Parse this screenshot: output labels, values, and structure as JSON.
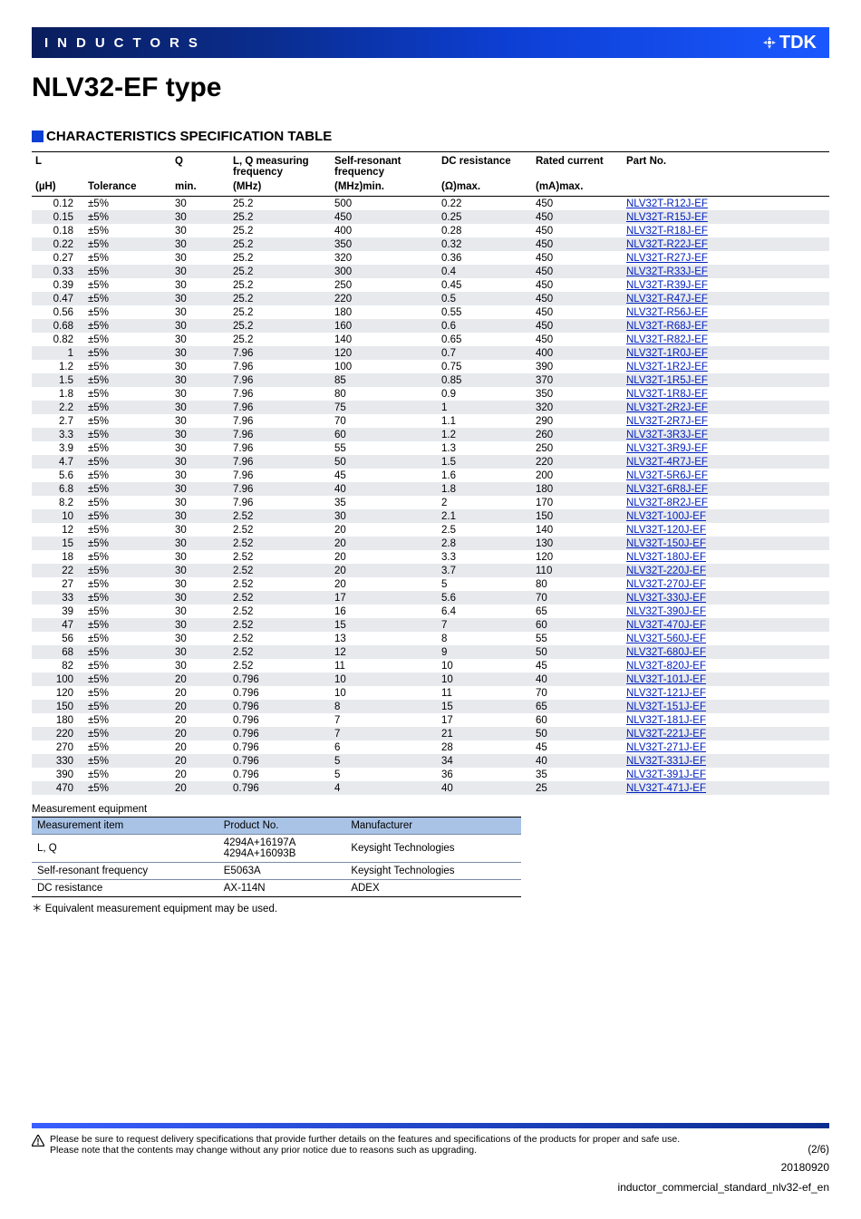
{
  "banner": {
    "title": "INDUCTORS",
    "brand": "TDK"
  },
  "page_title": "NLV32-EF type",
  "section_title": "CHARACTERISTICS SPECIFICATION TABLE",
  "spec": {
    "headers1": [
      "L",
      "",
      "Q",
      "L, Q measuring frequency",
      "Self-resonant frequency",
      "DC resistance",
      "Rated current",
      "Part No."
    ],
    "headers2": [
      "(µH)",
      "Tolerance",
      "min.",
      "(MHz)",
      "(MHz)min.",
      "(Ω)max.",
      "(mA)max.",
      ""
    ],
    "rows": [
      [
        "0.12",
        "±5%",
        "30",
        "25.2",
        "500",
        "0.22",
        "450",
        "NLV32T-R12J-EF"
      ],
      [
        "0.15",
        "±5%",
        "30",
        "25.2",
        "450",
        "0.25",
        "450",
        "NLV32T-R15J-EF"
      ],
      [
        "0.18",
        "±5%",
        "30",
        "25.2",
        "400",
        "0.28",
        "450",
        "NLV32T-R18J-EF"
      ],
      [
        "0.22",
        "±5%",
        "30",
        "25.2",
        "350",
        "0.32",
        "450",
        "NLV32T-R22J-EF"
      ],
      [
        "0.27",
        "±5%",
        "30",
        "25.2",
        "320",
        "0.36",
        "450",
        "NLV32T-R27J-EF"
      ],
      [
        "0.33",
        "±5%",
        "30",
        "25.2",
        "300",
        "0.4",
        "450",
        "NLV32T-R33J-EF"
      ],
      [
        "0.39",
        "±5%",
        "30",
        "25.2",
        "250",
        "0.45",
        "450",
        "NLV32T-R39J-EF"
      ],
      [
        "0.47",
        "±5%",
        "30",
        "25.2",
        "220",
        "0.5",
        "450",
        "NLV32T-R47J-EF"
      ],
      [
        "0.56",
        "±5%",
        "30",
        "25.2",
        "180",
        "0.55",
        "450",
        "NLV32T-R56J-EF"
      ],
      [
        "0.68",
        "±5%",
        "30",
        "25.2",
        "160",
        "0.6",
        "450",
        "NLV32T-R68J-EF"
      ],
      [
        "0.82",
        "±5%",
        "30",
        "25.2",
        "140",
        "0.65",
        "450",
        "NLV32T-R82J-EF"
      ],
      [
        "1",
        "±5%",
        "30",
        "7.96",
        "120",
        "0.7",
        "400",
        "NLV32T-1R0J-EF"
      ],
      [
        "1.2",
        "±5%",
        "30",
        "7.96",
        "100",
        "0.75",
        "390",
        "NLV32T-1R2J-EF"
      ],
      [
        "1.5",
        "±5%",
        "30",
        "7.96",
        "85",
        "0.85",
        "370",
        "NLV32T-1R5J-EF"
      ],
      [
        "1.8",
        "±5%",
        "30",
        "7.96",
        "80",
        "0.9",
        "350",
        "NLV32T-1R8J-EF"
      ],
      [
        "2.2",
        "±5%",
        "30",
        "7.96",
        "75",
        "1",
        "320",
        "NLV32T-2R2J-EF"
      ],
      [
        "2.7",
        "±5%",
        "30",
        "7.96",
        "70",
        "1.1",
        "290",
        "NLV32T-2R7J-EF"
      ],
      [
        "3.3",
        "±5%",
        "30",
        "7.96",
        "60",
        "1.2",
        "260",
        "NLV32T-3R3J-EF"
      ],
      [
        "3.9",
        "±5%",
        "30",
        "7.96",
        "55",
        "1.3",
        "250",
        "NLV32T-3R9J-EF"
      ],
      [
        "4.7",
        "±5%",
        "30",
        "7.96",
        "50",
        "1.5",
        "220",
        "NLV32T-4R7J-EF"
      ],
      [
        "5.6",
        "±5%",
        "30",
        "7.96",
        "45",
        "1.6",
        "200",
        "NLV32T-5R6J-EF"
      ],
      [
        "6.8",
        "±5%",
        "30",
        "7.96",
        "40",
        "1.8",
        "180",
        "NLV32T-6R8J-EF"
      ],
      [
        "8.2",
        "±5%",
        "30",
        "7.96",
        "35",
        "2",
        "170",
        "NLV32T-8R2J-EF"
      ],
      [
        "10",
        "±5%",
        "30",
        "2.52",
        "30",
        "2.1",
        "150",
        "NLV32T-100J-EF"
      ],
      [
        "12",
        "±5%",
        "30",
        "2.52",
        "20",
        "2.5",
        "140",
        "NLV32T-120J-EF"
      ],
      [
        "15",
        "±5%",
        "30",
        "2.52",
        "20",
        "2.8",
        "130",
        "NLV32T-150J-EF"
      ],
      [
        "18",
        "±5%",
        "30",
        "2.52",
        "20",
        "3.3",
        "120",
        "NLV32T-180J-EF"
      ],
      [
        "22",
        "±5%",
        "30",
        "2.52",
        "20",
        "3.7",
        "110",
        "NLV32T-220J-EF"
      ],
      [
        "27",
        "±5%",
        "30",
        "2.52",
        "20",
        "5",
        "80",
        "NLV32T-270J-EF"
      ],
      [
        "33",
        "±5%",
        "30",
        "2.52",
        "17",
        "5.6",
        "70",
        "NLV32T-330J-EF"
      ],
      [
        "39",
        "±5%",
        "30",
        "2.52",
        "16",
        "6.4",
        "65",
        "NLV32T-390J-EF"
      ],
      [
        "47",
        "±5%",
        "30",
        "2.52",
        "15",
        "7",
        "60",
        "NLV32T-470J-EF"
      ],
      [
        "56",
        "±5%",
        "30",
        "2.52",
        "13",
        "8",
        "55",
        "NLV32T-560J-EF"
      ],
      [
        "68",
        "±5%",
        "30",
        "2.52",
        "12",
        "9",
        "50",
        "NLV32T-680J-EF"
      ],
      [
        "82",
        "±5%",
        "30",
        "2.52",
        "11",
        "10",
        "45",
        "NLV32T-820J-EF"
      ],
      [
        "100",
        "±5%",
        "20",
        "0.796",
        "10",
        "10",
        "40",
        "NLV32T-101J-EF"
      ],
      [
        "120",
        "±5%",
        "20",
        "0.796",
        "10",
        "11",
        "70",
        "NLV32T-121J-EF"
      ],
      [
        "150",
        "±5%",
        "20",
        "0.796",
        "8",
        "15",
        "65",
        "NLV32T-151J-EF"
      ],
      [
        "180",
        "±5%",
        "20",
        "0.796",
        "7",
        "17",
        "60",
        "NLV32T-181J-EF"
      ],
      [
        "220",
        "±5%",
        "20",
        "0.796",
        "7",
        "21",
        "50",
        "NLV32T-221J-EF"
      ],
      [
        "270",
        "±5%",
        "20",
        "0.796",
        "6",
        "28",
        "45",
        "NLV32T-271J-EF"
      ],
      [
        "330",
        "±5%",
        "20",
        "0.796",
        "5",
        "34",
        "40",
        "NLV32T-331J-EF"
      ],
      [
        "390",
        "±5%",
        "20",
        "0.796",
        "5",
        "36",
        "35",
        "NLV32T-391J-EF"
      ],
      [
        "470",
        "±5%",
        "20",
        "0.796",
        "4",
        "40",
        "25",
        "NLV32T-471J-EF"
      ]
    ]
  },
  "meas": {
    "label": "Measurement equipment",
    "headers": [
      "Measurement item",
      "Product No.",
      "Manufacturer"
    ],
    "rows": [
      [
        "L, Q",
        "4294A+16197A\n4294A+16093B",
        "Keysight Technologies"
      ],
      [
        "Self-resonant frequency",
        "E5063A",
        "Keysight Technologies"
      ],
      [
        "DC resistance",
        "AX-114N",
        "ADEX"
      ]
    ],
    "note": "＊ Equivalent measurement equipment may be used."
  },
  "footer": {
    "warn1": "Please be sure to request delivery specifications that provide further details on the features and specifications of the products for proper and safe use.",
    "warn2": "Please note that the contents may change without any prior notice due to reasons such as upgrading.",
    "page": "(2/6)",
    "date": "20180920",
    "doc": "inductor_commercial_standard_nlv32-ef_en"
  }
}
